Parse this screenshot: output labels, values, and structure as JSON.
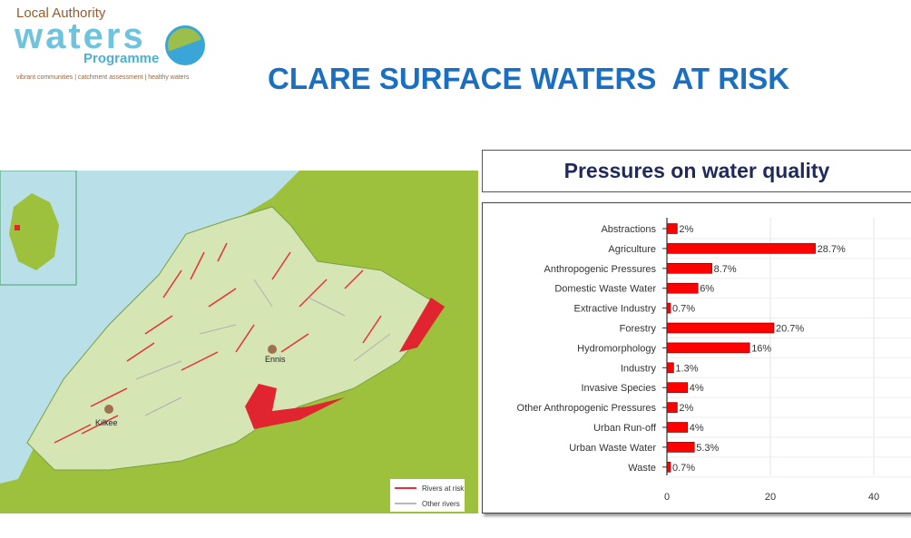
{
  "logo": {
    "line1": "Local Authority",
    "line2": "waters",
    "line3": "Programme",
    "tagline": "vibrant communities | catchment assessment | healthy waters"
  },
  "page_title": "CLARE SURFACE WATERS  AT RISK",
  "map": {
    "towns": [
      "Ennis",
      "Kilkee"
    ],
    "legend": [
      {
        "label": "Rivers at risk",
        "color": "#e8303a"
      },
      {
        "label": "Other rivers",
        "color": "#b8b8b8"
      }
    ]
  },
  "chart_title": "Pressures on water quality",
  "chart_data": {
    "type": "bar",
    "orientation": "horizontal",
    "title": "Pressures on water quality",
    "categories": [
      "Abstractions",
      "Agriculture",
      "Anthropogenic Pressures",
      "Domestic Waste Water",
      "Extractive Industry",
      "Forestry",
      "Hydromorphology",
      "Industry",
      "Invasive Species",
      "Other Anthropogenic Pressures",
      "Urban Run-off",
      "Urban Waste Water",
      "Waste"
    ],
    "values": [
      2,
      28.7,
      8.7,
      6,
      0.7,
      20.7,
      16,
      1.3,
      4,
      2,
      4,
      5.3,
      0.7
    ],
    "data_labels": [
      "2%",
      "28.7%",
      "8.7%",
      "6%",
      "0.7%",
      "20.7%",
      "16%",
      "1.3%",
      "4%",
      "2%",
      "4%",
      "5.3%",
      "0.7%"
    ],
    "x_ticks": [
      "0",
      "20",
      "40"
    ],
    "xlim": [
      0,
      47
    ],
    "grid": true,
    "bar_color": "#ff0000"
  }
}
